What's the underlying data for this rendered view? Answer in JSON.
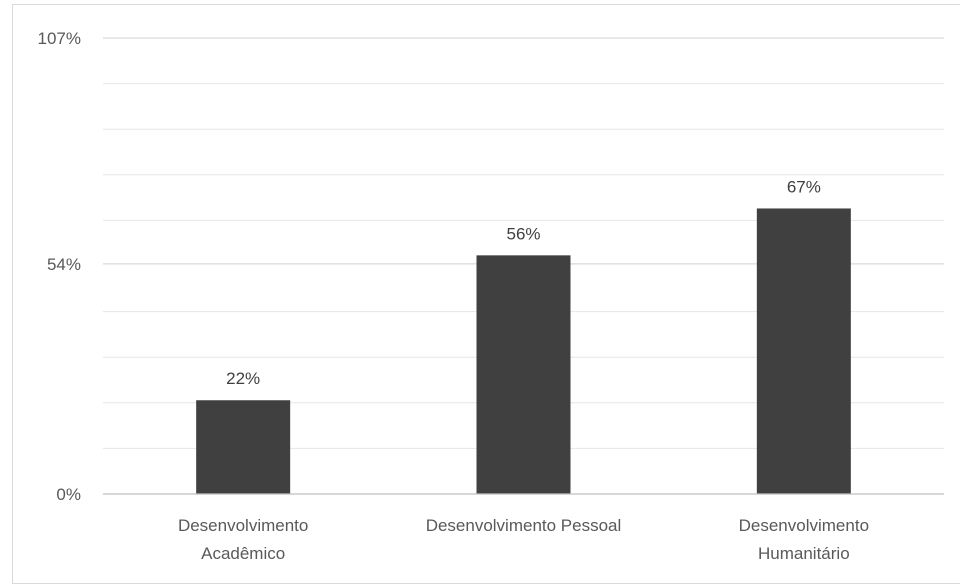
{
  "chart_data": {
    "type": "bar",
    "categories": [
      [
        "Desenvolvimento",
        "Acadêmico"
      ],
      [
        "Desenvolvimento Pessoal"
      ],
      [
        "Desenvolvimento",
        "Humanitário"
      ]
    ],
    "values": [
      22,
      56,
      67
    ],
    "data_labels": [
      "22%",
      "56%",
      "67%"
    ],
    "yticks": [
      0,
      54,
      107
    ],
    "ytick_labels": [
      "0%",
      "54%",
      "107%"
    ],
    "ylim": [
      0,
      107
    ],
    "minor_gridlines": [
      10.7,
      21.4,
      32.1,
      42.8,
      64.2,
      74.9,
      85.6,
      96.3
    ],
    "grid": true,
    "bar_color": "#404040",
    "legend": "none",
    "title": "",
    "xlabel": "",
    "ylabel": ""
  }
}
